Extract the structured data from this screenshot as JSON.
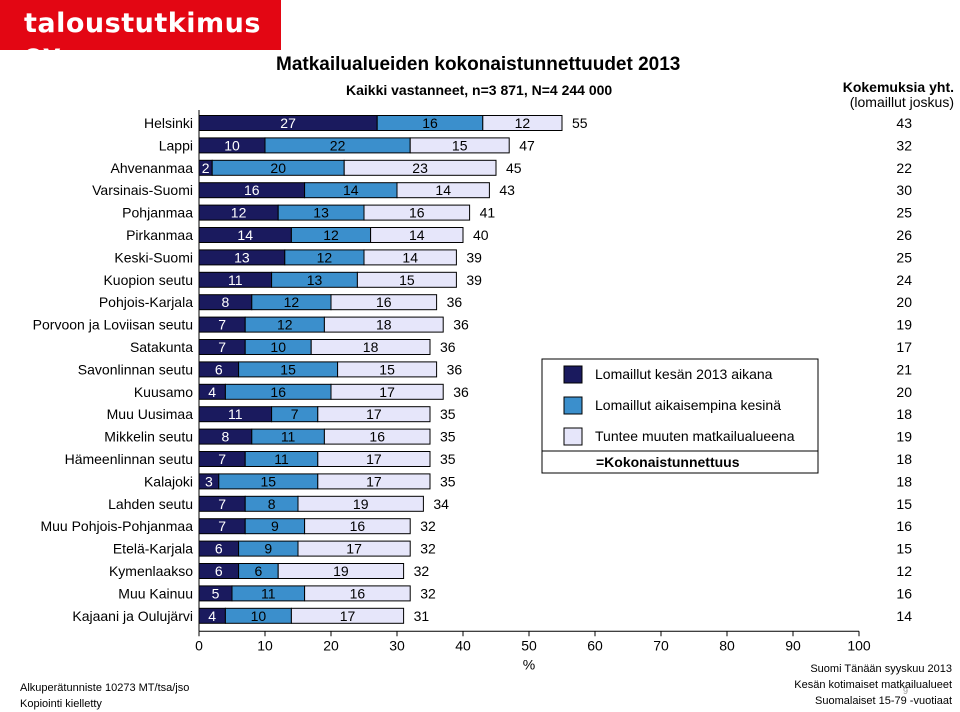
{
  "brand": {
    "logo_text": "taloustutkimus oy"
  },
  "header": {
    "title": "Matkailualueiden kokonaistunnettuudet 2013",
    "subtitle": "Kaikki vastanneet, n=3 871, N=4 244 000"
  },
  "experience": {
    "label1": "Kokemuksia yht.",
    "label2": "(lomaillut joskus)"
  },
  "footer": {
    "source": "Alkuperätunniste 10273 MT/tsa/jso",
    "copy": "Kopiointi kielletty",
    "r1": "Suomi Tänään syyskuu 2013",
    "r2": "Kesän kotimaiset matkailualueet",
    "r3": "Suomalaiset 15-79 -vuotiaat",
    "page": "9"
  },
  "colors": {
    "s1": "#1a1a5e",
    "s2": "#3b8fcc",
    "s3": "#e6e6fa",
    "edge": "#000000"
  },
  "chart_data": {
    "type": "bar",
    "orientation": "horizontal",
    "stacked": true,
    "title": "Matkailualueiden kokonaistunnettuudet 2013",
    "xlabel": "%",
    "xlim": [
      0,
      100
    ],
    "xticks": [
      0,
      10,
      20,
      30,
      40,
      50,
      60,
      70,
      80,
      90,
      100
    ],
    "categories": [
      "Helsinki",
      "Lappi",
      "Ahvenanmaa",
      "Varsinais-Suomi",
      "Pohjanmaa",
      "Pirkanmaa",
      "Keski-Suomi",
      "Kuopion seutu",
      "Pohjois-Karjala",
      "Porvoon ja Loviisan seutu",
      "Satakunta",
      "Savonlinnan seutu",
      "Kuusamo",
      "Muu Uusimaa",
      "Mikkelin seutu",
      "Hämeenlinnan seutu",
      "Kalajoki",
      "Lahden seutu",
      "Muu Pohjois-Pohjanmaa",
      "Etelä-Karjala",
      "Kymenlaakso",
      "Muu Kainuu",
      "Kajaani ja Oulujärvi"
    ],
    "series": [
      {
        "name": "Lomaillut kesän 2013 aikana",
        "values": [
          27,
          10,
          2,
          16,
          12,
          14,
          13,
          11,
          8,
          7,
          7,
          6,
          4,
          11,
          8,
          7,
          3,
          7,
          7,
          6,
          6,
          5,
          4
        ]
      },
      {
        "name": "Lomaillut aikaisempina kesinä",
        "values": [
          16,
          22,
          20,
          14,
          13,
          12,
          12,
          13,
          12,
          12,
          10,
          15,
          16,
          7,
          11,
          11,
          15,
          8,
          9,
          9,
          6,
          11,
          10
        ]
      },
      {
        "name": "Tuntee muuten matkailualueena",
        "values": [
          12,
          15,
          23,
          14,
          16,
          14,
          14,
          15,
          16,
          18,
          18,
          15,
          17,
          17,
          16,
          17,
          17,
          19,
          16,
          17,
          19,
          16,
          17
        ]
      }
    ],
    "bar_labels": [
      [
        "27",
        "16",
        "12"
      ],
      [
        "10",
        "22",
        "15"
      ],
      [
        "2",
        "20",
        "23"
      ],
      [
        "16",
        "14",
        "14"
      ],
      [
        "12",
        "13",
        "16"
      ],
      [
        "14",
        "12",
        "14"
      ],
      [
        "13",
        "12",
        "14"
      ],
      [
        "11",
        "13",
        "15"
      ],
      [
        "8",
        "12",
        "16"
      ],
      [
        "7",
        "12",
        "18"
      ],
      [
        "7",
        "10",
        "18"
      ],
      [
        "6",
        "15",
        "15"
      ],
      [
        "4",
        "16",
        "17"
      ],
      [
        "11",
        "7",
        "17"
      ],
      [
        "8",
        "11",
        "16"
      ],
      [
        "7",
        "11",
        "17"
      ],
      [
        "3",
        "15",
        "17"
      ],
      [
        "7",
        "8",
        "19"
      ],
      [
        "7",
        "9",
        "16"
      ],
      [
        "6",
        "9",
        "17"
      ],
      [
        "6",
        "6",
        "19"
      ],
      [
        "5",
        "11",
        "16"
      ],
      [
        "4",
        "10",
        "17"
      ]
    ],
    "totals": [
      55,
      47,
      45,
      43,
      41,
      40,
      39,
      39,
      36,
      36,
      36,
      36,
      36,
      35,
      35,
      35,
      35,
      34,
      32,
      32,
      32,
      32,
      31
    ],
    "experience_totals": [
      43,
      32,
      22,
      30,
      25,
      26,
      25,
      24,
      20,
      19,
      17,
      21,
      20,
      18,
      19,
      18,
      18,
      15,
      16,
      15,
      12,
      16,
      14
    ],
    "total_label": "=Kokonaistunnettuus",
    "legend_position": "center-right"
  }
}
